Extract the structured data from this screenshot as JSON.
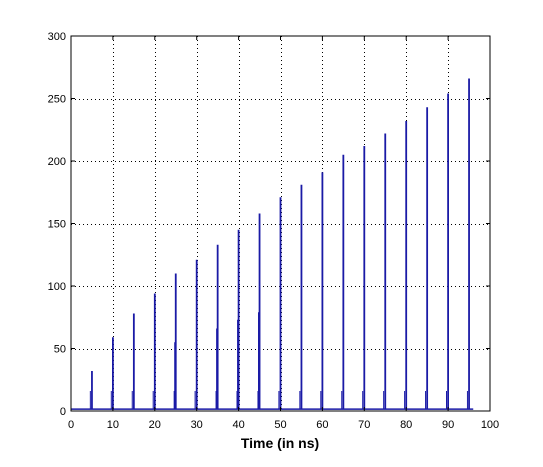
{
  "chart_data": {
    "type": "line",
    "title": "",
    "xlabel": "Time (in ns)",
    "ylabel": "",
    "xlim": [
      0,
      100
    ],
    "ylim": [
      0,
      300
    ],
    "xticks": [
      0,
      10,
      20,
      30,
      40,
      50,
      60,
      70,
      80,
      90,
      100
    ],
    "yticks": [
      0,
      50,
      100,
      150,
      200,
      250,
      300
    ],
    "grid": true,
    "grid_style": "dotted",
    "line_color": "#1a1aa6",
    "baseline": 1.5,
    "series": [
      {
        "spikes": [
          {
            "x": 5,
            "y": 32
          },
          {
            "x": 10,
            "y": 59
          },
          {
            "x": 15,
            "y": 78
          },
          {
            "x": 20,
            "y": 94
          },
          {
            "x": 25,
            "y": 110
          },
          {
            "x": 30,
            "y": 121
          },
          {
            "x": 35,
            "y": 133
          },
          {
            "x": 40,
            "y": 145
          },
          {
            "x": 45,
            "y": 158
          },
          {
            "x": 50,
            "y": 171
          },
          {
            "x": 55,
            "y": 181
          },
          {
            "x": 60,
            "y": 191
          },
          {
            "x": 65,
            "y": 205
          },
          {
            "x": 70,
            "y": 212
          },
          {
            "x": 75,
            "y": 222
          },
          {
            "x": 80,
            "y": 232
          },
          {
            "x": 85,
            "y": 243
          },
          {
            "x": 90,
            "y": 254
          },
          {
            "x": 95,
            "y": 266
          }
        ],
        "secondary_spikes": [
          {
            "x": 24.8,
            "y": 55
          },
          {
            "x": 34.8,
            "y": 66
          },
          {
            "x": 39.8,
            "y": 73
          },
          {
            "x": 44.8,
            "y": 79
          }
        ]
      }
    ]
  }
}
